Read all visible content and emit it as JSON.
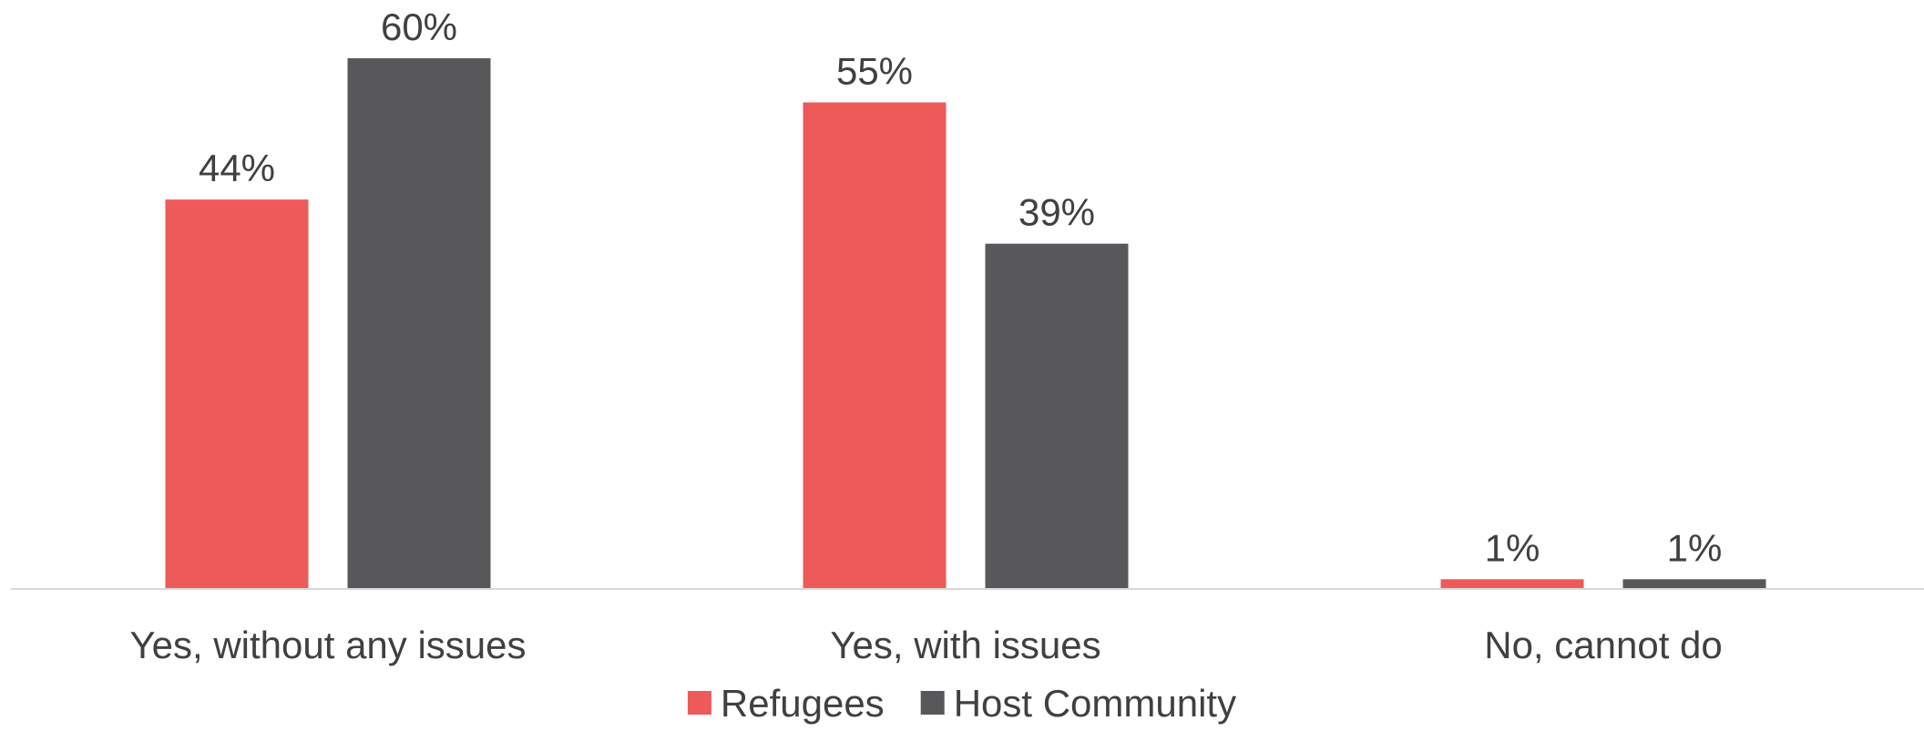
{
  "chart_data": {
    "type": "bar",
    "categories": [
      "Yes, without any issues",
      "Yes, with issues",
      "No, cannot do"
    ],
    "series": [
      {
        "name": "Refugees",
        "values": [
          44,
          55,
          1
        ],
        "labels": [
          "44%",
          "55%",
          "1%"
        ],
        "color": "#ee5a5a"
      },
      {
        "name": "Host Community",
        "values": [
          60,
          39,
          1
        ],
        "labels": [
          "60%",
          "39%",
          "1%"
        ],
        "color": "#58585a"
      }
    ],
    "unit": "%",
    "ylim": [
      0,
      60
    ],
    "grid": false,
    "legend_position": "bottom",
    "axis_color": "#d9d9d9"
  }
}
